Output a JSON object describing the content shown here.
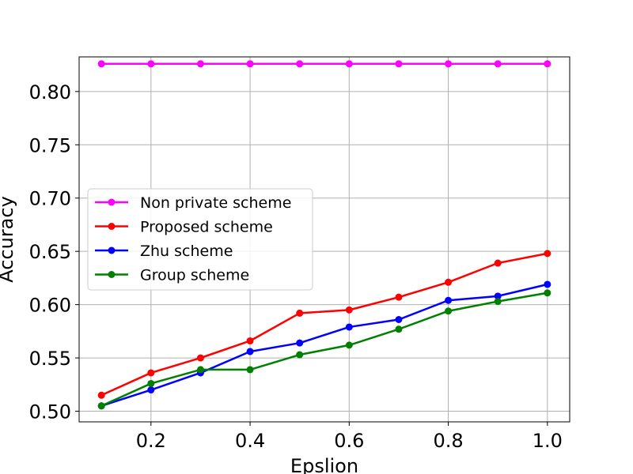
{
  "chart_data": {
    "type": "line",
    "title": "",
    "xlabel": "Epslion",
    "ylabel": "Accuracy",
    "grid": true,
    "legend_position": "center-left",
    "xlim": [
      0.055,
      1.045
    ],
    "ylim": [
      0.49,
      0.8325
    ],
    "xticks": [
      0.2,
      0.4,
      0.6,
      0.8,
      1.0
    ],
    "xtick_labels": [
      "0.2",
      "0.4",
      "0.6",
      "0.8",
      "1.0"
    ],
    "yticks": [
      0.5,
      0.55,
      0.6,
      0.65,
      0.7,
      0.75,
      0.8
    ],
    "ytick_labels": [
      "0.50",
      "0.55",
      "0.60",
      "0.65",
      "0.70",
      "0.75",
      "0.80"
    ],
    "x": [
      0.1,
      0.2,
      0.3,
      0.4,
      0.5,
      0.6,
      0.7,
      0.8,
      0.9,
      1.0
    ],
    "series": [
      {
        "name": "Non private scheme",
        "color": "#ff00ff",
        "values": [
          0.826,
          0.826,
          0.826,
          0.826,
          0.826,
          0.826,
          0.826,
          0.826,
          0.826,
          0.826
        ]
      },
      {
        "name": "Proposed scheme",
        "color": "#ff0000",
        "values": [
          0.515,
          0.536,
          0.55,
          0.566,
          0.592,
          0.595,
          0.607,
          0.621,
          0.639,
          0.648
        ]
      },
      {
        "name": "Zhu scheme",
        "color": "#0000ff",
        "values": [
          0.505,
          0.52,
          0.536,
          0.556,
          0.564,
          0.579,
          0.586,
          0.604,
          0.608,
          0.619
        ]
      },
      {
        "name": "Group scheme",
        "color": "#008000",
        "values": [
          0.505,
          0.526,
          0.539,
          0.539,
          0.553,
          0.562,
          0.577,
          0.594,
          0.603,
          0.611
        ]
      }
    ]
  }
}
